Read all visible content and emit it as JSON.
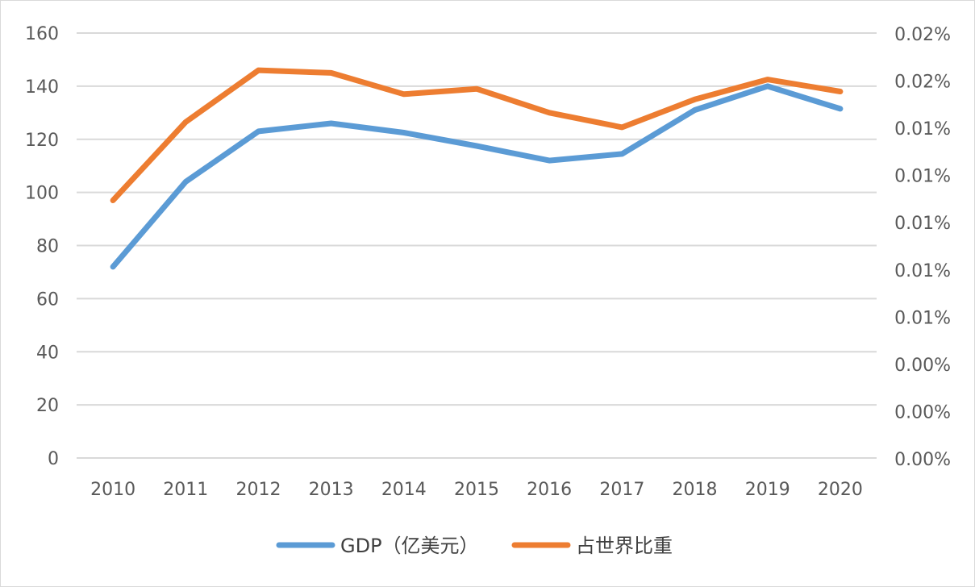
{
  "chart_data": {
    "type": "line",
    "categories": [
      "2010",
      "2011",
      "2012",
      "2013",
      "2014",
      "2015",
      "2016",
      "2017",
      "2018",
      "2019",
      "2020"
    ],
    "series": [
      {
        "name": "GDP（亿美元）",
        "axis": "left",
        "color": "#5b9bd5",
        "values": [
          72,
          104,
          123,
          126,
          122.5,
          117.5,
          112,
          114.5,
          131,
          140,
          131.5
        ]
      },
      {
        "name": "占世界比重",
        "axis": "right",
        "color": "#ed7d31",
        "values_left_axis_scale": [
          97,
          126.5,
          146,
          145,
          137,
          139,
          130,
          124.5,
          135,
          142.5,
          138
        ]
      }
    ],
    "y_left": {
      "ylim": [
        0,
        160
      ],
      "ticks": [
        "0",
        "20",
        "40",
        "60",
        "80",
        "100",
        "120",
        "140",
        "160"
      ]
    },
    "y_right": {
      "ticks": [
        "0.00%",
        "0.00%",
        "0.00%",
        "0.01%",
        "0.01%",
        "0.01%",
        "0.01%",
        "0.01%",
        "0.02%",
        "0.02%"
      ]
    },
    "grid": true,
    "legend_position": "bottom"
  }
}
